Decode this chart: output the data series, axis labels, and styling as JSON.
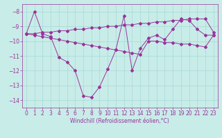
{
  "xlabel": "Windchill (Refroidissement éolien,°C)",
  "background_color": "#c8ece8",
  "grid_color": "#a8d8d8",
  "line_color": "#993399",
  "xlim": [
    -0.5,
    23.5
  ],
  "ylim": [
    -14.5,
    -7.5
  ],
  "yticks": [
    -14,
    -13,
    -12,
    -11,
    -10,
    -9,
    -8
  ],
  "xticks": [
    0,
    1,
    2,
    3,
    4,
    5,
    6,
    7,
    8,
    9,
    10,
    11,
    12,
    13,
    14,
    15,
    16,
    17,
    18,
    19,
    20,
    21,
    22,
    23
  ],
  "main_y": [
    -9.5,
    -8.0,
    -9.5,
    -9.7,
    -11.1,
    -11.4,
    -12.0,
    -13.7,
    -13.8,
    -13.1,
    -11.9,
    -10.6,
    -8.3,
    -12.0,
    -10.5,
    -9.8,
    -9.6,
    -9.9,
    -9.2,
    -8.5,
    -8.6,
    -9.2,
    -9.6,
    -9.6
  ],
  "upper_y": [
    -9.5,
    -9.5,
    -9.4,
    -9.4,
    -9.3,
    -9.3,
    -9.2,
    -9.2,
    -9.1,
    -9.1,
    -9.0,
    -9.0,
    -8.9,
    -8.9,
    -8.8,
    -8.8,
    -8.7,
    -8.7,
    -8.6,
    -8.6,
    -8.5,
    -8.5,
    -8.5,
    -9.4
  ],
  "lower_y": [
    -9.5,
    -9.6,
    -9.7,
    -9.8,
    -9.9,
    -10.0,
    -10.1,
    -10.2,
    -10.3,
    -10.4,
    -10.5,
    -10.6,
    -10.7,
    -10.8,
    -10.9,
    -10.0,
    -10.0,
    -10.1,
    -10.1,
    -10.2,
    -10.2,
    -10.3,
    -10.4,
    -9.6
  ],
  "tick_fontsize": 5.5,
  "xlabel_fontsize": 5.5
}
